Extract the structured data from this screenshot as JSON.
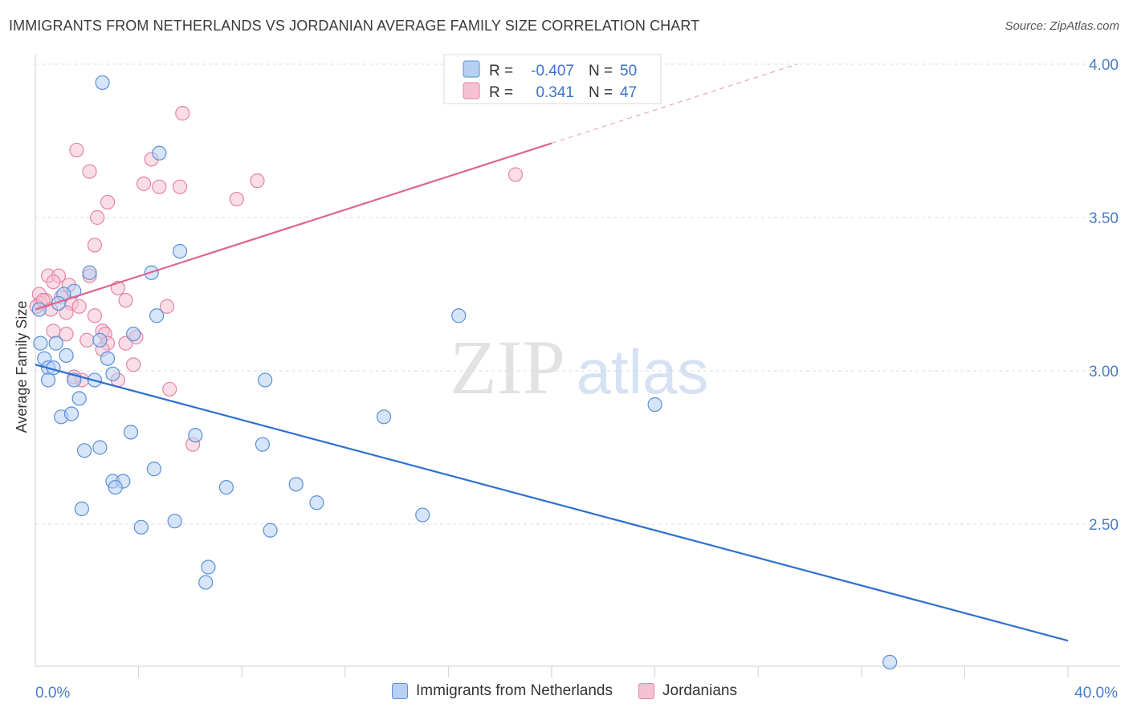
{
  "header": {
    "title": "IMMIGRANTS FROM NETHERLANDS VS JORDANIAN AVERAGE FAMILY SIZE CORRELATION CHART",
    "source": "Source: ZipAtlas.com"
  },
  "watermark": {
    "zip": "ZIP",
    "atlas": "atlas"
  },
  "colors": {
    "blue_fill": "#b7d0f2",
    "blue_stroke": "#5a8fd8",
    "blue_line": "#2f6fcf",
    "pink_fill": "#f6c2d3",
    "pink_stroke": "#e583a4",
    "pink_line": "#df6591",
    "axis_text": "#4a7cc9"
  },
  "stats_legend": [
    {
      "r_label": "R = ",
      "r_value": "-0.407",
      "n_label": "N = ",
      "n_value": "50",
      "series": "blue"
    },
    {
      "r_label": "R = ",
      "r_value": "0.341",
      "n_label": "N = ",
      "n_value": "47",
      "series": "pink"
    }
  ],
  "chart_data": {
    "type": "scatter",
    "title": "IMMIGRANTS FROM NETHERLANDS VS JORDANIAN AVERAGE FAMILY SIZE CORRELATION CHART",
    "ylabel": "Average Family Size",
    "xlim": [
      0,
      40
    ],
    "ylim": [
      2.05,
      4.05
    ],
    "x_tick_labels": [
      {
        "value": 0,
        "label": "0.0%"
      },
      {
        "value": 40,
        "label": "40.0%"
      }
    ],
    "y_ticks": [
      {
        "value": 2.5,
        "label": "2.50"
      },
      {
        "value": 3.0,
        "label": "3.00"
      },
      {
        "value": 3.5,
        "label": "3.50"
      },
      {
        "value": 4.0,
        "label": "4.00"
      }
    ],
    "x_minor_ticks": [
      4,
      8,
      12,
      16,
      20,
      24,
      28,
      32,
      36,
      40
    ],
    "grid": "horizontal dashed",
    "legend_placement": "bottom",
    "series": [
      {
        "name": "Immigrants from Netherlands",
        "color": "blue",
        "trend": {
          "x0": 0,
          "y0": 3.02,
          "x1": 40,
          "y1": 2.12
        },
        "points": [
          [
            2.6,
            3.94
          ],
          [
            4.8,
            3.71
          ],
          [
            5.6,
            3.39
          ],
          [
            2.1,
            3.32
          ],
          [
            4.5,
            3.32
          ],
          [
            1.5,
            3.26
          ],
          [
            4.7,
            3.18
          ],
          [
            16.4,
            3.18
          ],
          [
            3.8,
            3.12
          ],
          [
            2.5,
            3.1
          ],
          [
            0.2,
            3.09
          ],
          [
            0.8,
            3.09
          ],
          [
            1.2,
            3.05
          ],
          [
            0.35,
            3.04
          ],
          [
            2.8,
            3.04
          ],
          [
            0.5,
            3.01
          ],
          [
            0.7,
            3.01
          ],
          [
            3.0,
            2.99
          ],
          [
            0.5,
            2.97
          ],
          [
            1.5,
            2.97
          ],
          [
            2.3,
            2.97
          ],
          [
            8.9,
            2.97
          ],
          [
            1.7,
            2.91
          ],
          [
            24.0,
            2.89
          ],
          [
            1.0,
            2.85
          ],
          [
            1.4,
            2.86
          ],
          [
            13.5,
            2.85
          ],
          [
            3.7,
            2.8
          ],
          [
            6.2,
            2.79
          ],
          [
            8.8,
            2.76
          ],
          [
            2.5,
            2.75
          ],
          [
            1.9,
            2.74
          ],
          [
            4.6,
            2.68
          ],
          [
            3.0,
            2.64
          ],
          [
            3.4,
            2.64
          ],
          [
            3.1,
            2.62
          ],
          [
            7.4,
            2.62
          ],
          [
            10.1,
            2.63
          ],
          [
            10.9,
            2.57
          ],
          [
            1.8,
            2.55
          ],
          [
            15.0,
            2.53
          ],
          [
            5.4,
            2.51
          ],
          [
            4.1,
            2.49
          ],
          [
            9.1,
            2.48
          ],
          [
            6.7,
            2.36
          ],
          [
            6.6,
            2.31
          ],
          [
            33.1,
            2.05
          ],
          [
            0.15,
            3.2
          ],
          [
            1.1,
            3.25
          ],
          [
            0.9,
            3.22
          ]
        ]
      },
      {
        "name": "Jordanians",
        "color": "pink",
        "trend": {
          "x0": 0,
          "y0": 3.2,
          "x1": 29.5,
          "y1": 4.0,
          "solid_until_x": 20
        },
        "points": [
          [
            5.7,
            3.84
          ],
          [
            1.6,
            3.72
          ],
          [
            4.5,
            3.69
          ],
          [
            2.1,
            3.65
          ],
          [
            18.6,
            3.64
          ],
          [
            4.2,
            3.61
          ],
          [
            4.8,
            3.6
          ],
          [
            5.6,
            3.6
          ],
          [
            8.6,
            3.62
          ],
          [
            7.8,
            3.56
          ],
          [
            2.8,
            3.55
          ],
          [
            2.4,
            3.5
          ],
          [
            2.3,
            3.41
          ],
          [
            0.5,
            3.31
          ],
          [
            0.9,
            3.31
          ],
          [
            2.1,
            3.31
          ],
          [
            0.7,
            3.29
          ],
          [
            1.3,
            3.28
          ],
          [
            0.15,
            3.25
          ],
          [
            3.2,
            3.27
          ],
          [
            0.4,
            3.23
          ],
          [
            0.2,
            3.22
          ],
          [
            1.4,
            3.22
          ],
          [
            3.5,
            3.23
          ],
          [
            1.7,
            3.21
          ],
          [
            5.1,
            3.21
          ],
          [
            0.05,
            3.21
          ],
          [
            1.2,
            3.19
          ],
          [
            2.3,
            3.18
          ],
          [
            0.7,
            3.13
          ],
          [
            2.6,
            3.13
          ],
          [
            1.2,
            3.12
          ],
          [
            2.7,
            3.12
          ],
          [
            3.9,
            3.11
          ],
          [
            3.5,
            3.09
          ],
          [
            2.8,
            3.09
          ],
          [
            2.6,
            3.07
          ],
          [
            1.8,
            2.97
          ],
          [
            1.5,
            2.98
          ],
          [
            3.2,
            2.97
          ],
          [
            3.8,
            3.02
          ],
          [
            5.2,
            2.94
          ],
          [
            6.1,
            2.76
          ],
          [
            0.3,
            3.23
          ],
          [
            0.6,
            3.2
          ],
          [
            1.0,
            3.24
          ],
          [
            2.0,
            3.1
          ]
        ]
      }
    ]
  }
}
